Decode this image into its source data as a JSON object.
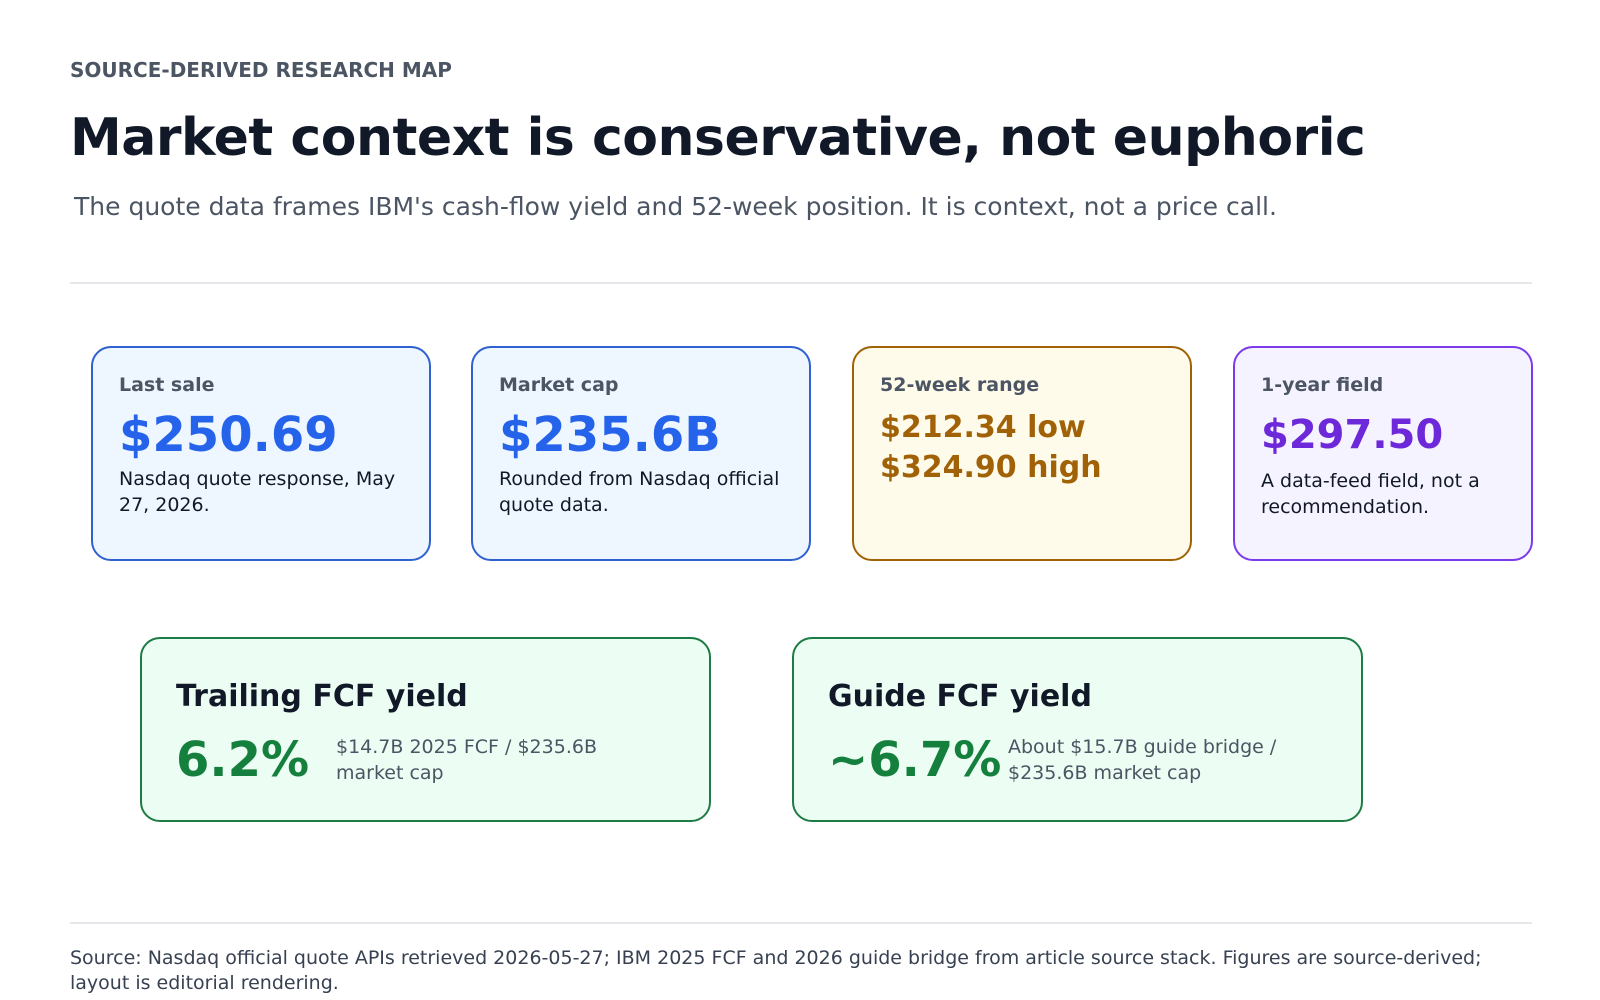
{
  "header": {
    "eyebrow": "SOURCE-DERIVED RESEARCH MAP",
    "title": "Market context is conservative, not euphoric",
    "subtitle": "The quote data frames IBM's cash-flow yield and 52-week position. It is context, not a price call."
  },
  "metrics": [
    {
      "label": "Last sale",
      "value": [
        "$250.69"
      ],
      "note": "Nasdaq quote response, May 27, 2026."
    },
    {
      "label": "Market cap",
      "value": [
        "$235.6B"
      ],
      "note": "Rounded from Nasdaq official quote data."
    },
    {
      "label": "52-week range",
      "value": [
        "$212.34 low",
        "$324.90 high"
      ]
    },
    {
      "label": "1-year field",
      "value": [
        "$297.50"
      ],
      "note": "A data-feed field, not a recommendation."
    }
  ],
  "yields": [
    {
      "label": "Trailing FCF yield",
      "value": "6.2%",
      "note": "$14.7B 2025 FCF / $235.6B market cap"
    },
    {
      "label": "Guide FCF yield",
      "value": "~6.7%",
      "note": "About $15.7B guide bridge / $235.6B market cap"
    }
  ],
  "footer": {
    "source": "Source: Nasdaq official quote APIs retrieved 2026-05-27; IBM 2025 FCF and 2026 guide bridge from article source stack. Figures are source-derived; layout is editorial rendering."
  }
}
